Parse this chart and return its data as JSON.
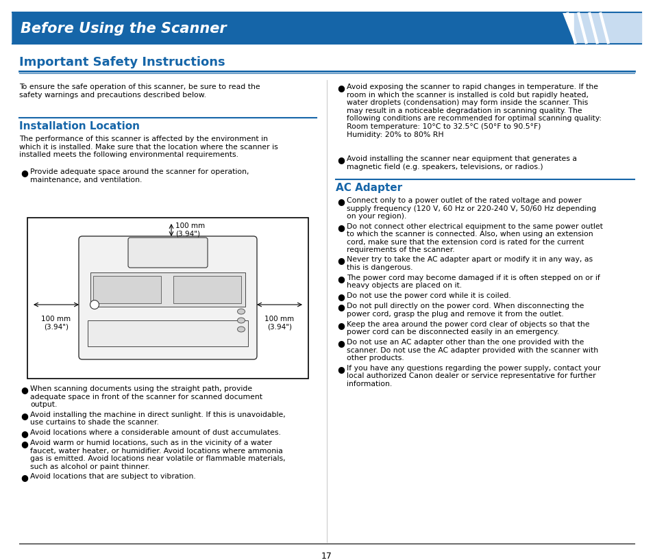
{
  "title_banner": "Before Using the Scanner",
  "title_banner_bg": "#1565A8",
  "title_banner_text_color": "#FFFFFF",
  "section1_title": "Important Safety Instructions",
  "section1_title_color": "#1565A8",
  "section2_title": "Installation Location",
  "section2_title_color": "#1565A8",
  "section3_title": "AC Adapter",
  "section3_title_color": "#1565A8",
  "body_text_color": "#000000",
  "rule_color": "#1565A8",
  "page_number": "17",
  "intro_text": "To ensure the safe operation of this scanner, be sure to read the\nsafety warnings and precautions described below.",
  "install_loc_body": "The performance of this scanner is affected by the environment in\nwhich it is installed. Make sure that the location where the scanner is\ninstalled meets the following environmental requirements.",
  "left_bullets": [
    "Provide adequate space around the scanner for operation,\nmaintenance, and ventilation.",
    "When scanning documents using the straight path, provide\nadequate space in front of the scanner for scanned document\noutput.",
    "Avoid installing the machine in direct sunlight. If this is unavoidable,\nuse curtains to shade the scanner.",
    "Avoid locations where a considerable amount of dust accumulates.",
    "Avoid warm or humid locations, such as in the vicinity of a water\nfaucet, water heater, or humidifier. Avoid locations where ammonia\ngas is emitted. Avoid locations near volatile or flammable materials,\nsuch as alcohol or paint thinner.",
    "Avoid locations that are subject to vibration."
  ],
  "right_bullets_top": [
    "Avoid exposing the scanner to rapid changes in temperature. If the\nroom in which the scanner is installed is cold but rapidly heated,\nwater droplets (condensation) may form inside the scanner. This\nmay result in a noticeable degradation in scanning quality. The\nfollowing conditions are recommended for optimal scanning quality:\nRoom temperature: 10°C to 32.5°C (50°F to 90.5°F)\nHumidity: 20% to 80% RH",
    "Avoid installing the scanner near equipment that generates a\nmagnetic field (e.g. speakers, televisions, or radios.)"
  ],
  "ac_adapter_bullets": [
    "Connect only to a power outlet of the rated voltage and power\nsupply frequency (120 V, 60 Hz or 220-240 V, 50/60 Hz depending\non your region).",
    "Do not connect other electrical equipment to the same power outlet\nto which the scanner is connected. Also, when using an extension\ncord, make sure that the extension cord is rated for the current\nrequirements of the scanner.",
    "Never try to take the AC adapter apart or modify it in any way, as\nthis is dangerous.",
    "The power cord may become damaged if it is often stepped on or if\nheavy objects are placed on it.",
    "Do not use the power cord while it is coiled.",
    "Do not pull directly on the power cord. When disconnecting the\npower cord, grasp the plug and remove it from the outlet.",
    "Keep the area around the power cord clear of objects so that the\npower cord can be disconnected easily in an emergency.",
    "Do not use an AC adapter other than the one provided with the\nscanner. Do not use the AC adapter provided with the scanner with\nother products.",
    "If you have any questions regarding the power supply, contact your\nlocal authorized Canon dealer or service representative for further\ninformation."
  ],
  "background_color": "#FFFFFF"
}
